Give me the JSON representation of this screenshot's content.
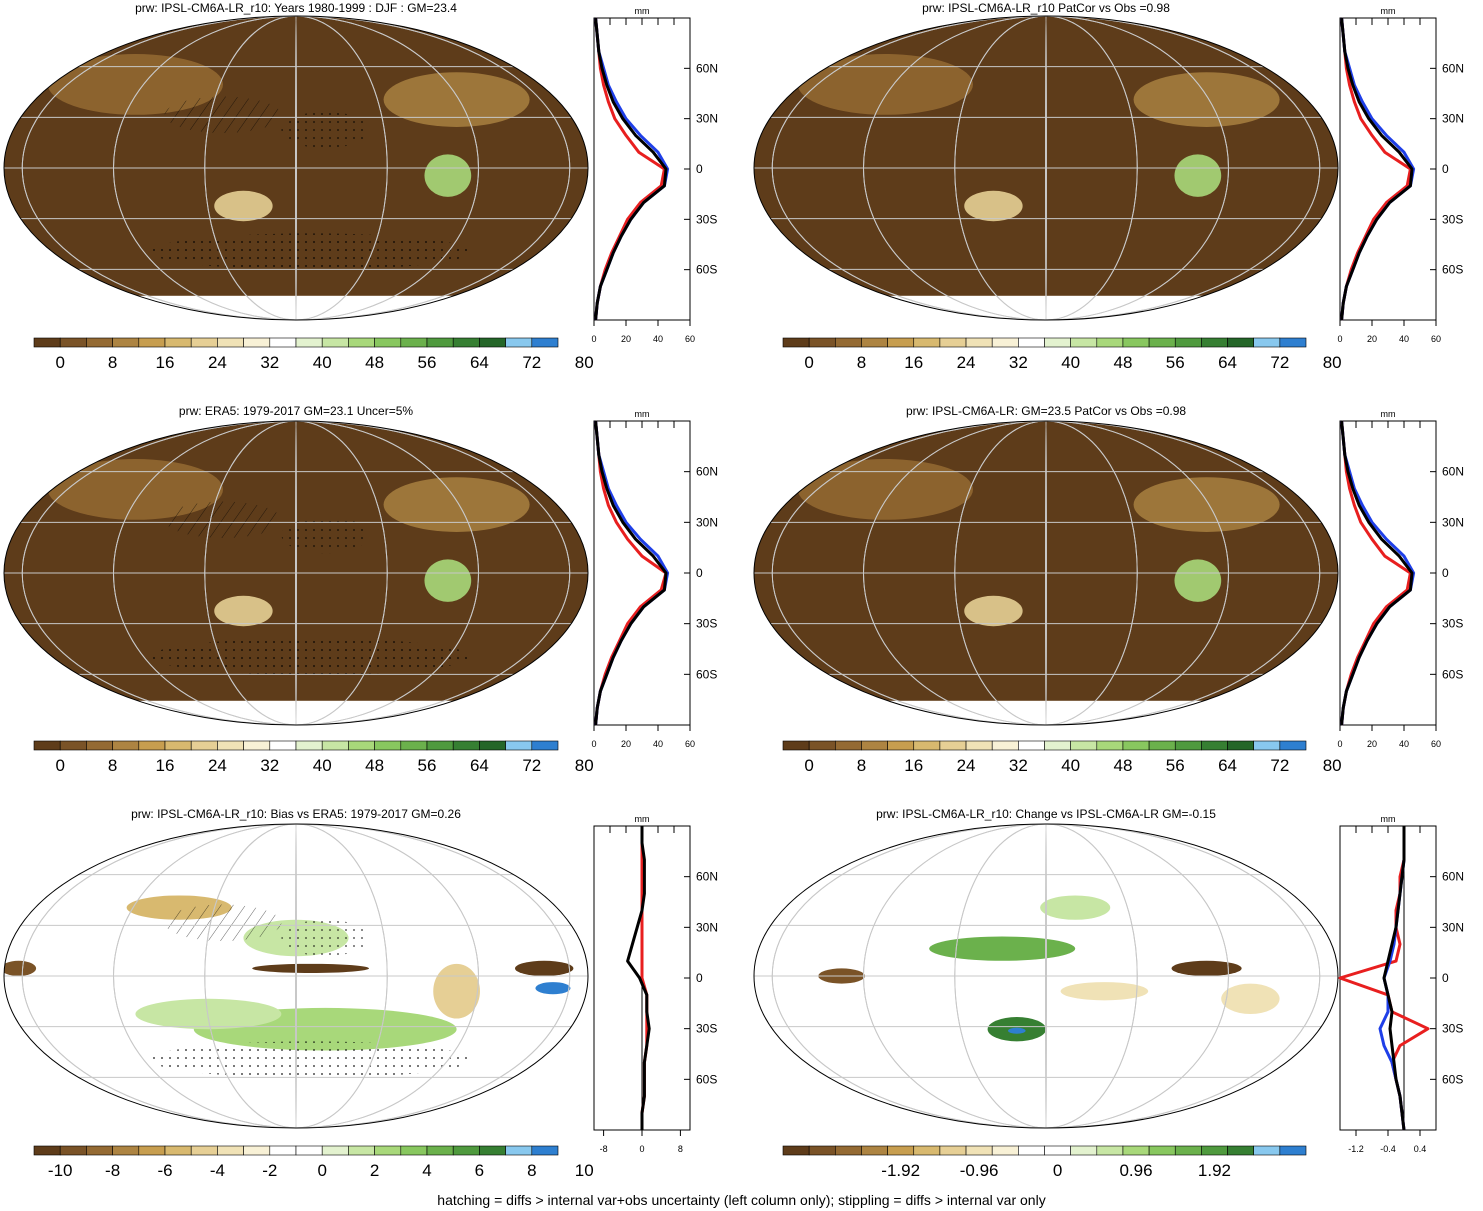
{
  "colors": {
    "abs_scale": [
      "#5e3c1a",
      "#7a5327",
      "#946a33",
      "#ad8442",
      "#c79e4f",
      "#d8b96f",
      "#e6cf95",
      "#f0e2b6",
      "#f8f1d6",
      "#ffffff",
      "#e3f2cf",
      "#c7e6a4",
      "#a8d87a",
      "#88c75f",
      "#6bb14c",
      "#4f9a3e",
      "#367f32",
      "#246628",
      "#88c8ee",
      "#2e7fd0"
    ],
    "diff_scale": [
      "#5e3c1a",
      "#7a5327",
      "#946a33",
      "#ad8442",
      "#c79e4f",
      "#d8b96f",
      "#e6cf95",
      "#f0e2b6",
      "#f8f1d6",
      "#ffffff",
      "#ffffff",
      "#e3f2cf",
      "#c7e6a4",
      "#a8d87a",
      "#88c75f",
      "#6bb14c",
      "#4f9a3e",
      "#367f32",
      "#88c8ee",
      "#2e7fd0"
    ],
    "model_line": "#000000",
    "obs_line": "#e81f1f",
    "ref_line": "#1f3fe8"
  },
  "panels": [
    {
      "title": "prw: IPSL-CM6A-LR_r10: Years 1980-1999 : DJF : GM=23.4"
    },
    {
      "title": "prw: IPSL-CM6A-LR_r10 PatCor vs Obs =0.98"
    },
    {
      "title": "prw: ERA5: 1979-2017 GM=23.1 Uncer=5%"
    },
    {
      "title": "prw: IPSL-CM6A-LR: GM=23.5 PatCor vs Obs =0.98"
    },
    {
      "title": "prw: IPSL-CM6A-LR_r10: Bias vs ERA5: 1979-2017 GM=0.26"
    },
    {
      "title": "prw: IPSL-CM6A-LR_r10: Change vs IPSL-CM6A-LR GM=-0.15"
    }
  ],
  "colorbars": {
    "abs_labels": [
      "0",
      "8",
      "16",
      "24",
      "32",
      "40",
      "48",
      "56",
      "64",
      "72",
      "80"
    ],
    "bias_labels": [
      "-10",
      "-8",
      "-6",
      "-4",
      "-2",
      "0",
      "2",
      "4",
      "6",
      "8",
      "10"
    ],
    "change_labels": [
      "-1.92",
      "-0.96",
      "0",
      "0.96",
      "1.92"
    ]
  },
  "zonal": {
    "unit": "mm",
    "lat_labels": [
      "60N",
      "30N",
      "0",
      "30S",
      "60S"
    ],
    "abs_xticks": [
      "0",
      "20",
      "40",
      "60"
    ],
    "bias_xticks": [
      "-8",
      "0",
      "8"
    ],
    "change_xticks": [
      "-1.2",
      "-0.4",
      "0.4"
    ]
  },
  "chart_data": [
    {
      "type": "line",
      "title": "prw: IPSL-CM6A-LR_r10: Years 1980-1999 : DJF : GM=23.4",
      "xlabel": "mm",
      "ylabel": "",
      "xlim": [
        0,
        60
      ],
      "ylim": [
        -90,
        90
      ],
      "y": [
        -90,
        -80,
        -70,
        -60,
        -50,
        -40,
        -30,
        -20,
        -10,
        0,
        10,
        20,
        30,
        40,
        50,
        60,
        70,
        80,
        90
      ],
      "series": [
        {
          "values": [
            1,
            2,
            4,
            8,
            12,
            17,
            23,
            31,
            44,
            45,
            37,
            26,
            18,
            12,
            8,
            5,
            3,
            2,
            1
          ]
        },
        {
          "values": [
            1,
            2,
            4,
            7,
            11,
            16,
            21,
            29,
            42,
            44,
            28,
            20,
            13,
            9,
            6,
            4,
            3,
            2,
            1
          ]
        },
        {
          "values": [
            1,
            2,
            4,
            8,
            12,
            17,
            23,
            31,
            44,
            46,
            40,
            29,
            20,
            14,
            9,
            6,
            3,
            2,
            1
          ]
        }
      ]
    },
    {
      "type": "line",
      "title": "prw: IPSL-CM6A-LR_r10 PatCor vs Obs =0.98",
      "xlabel": "mm",
      "ylabel": "",
      "xlim": [
        0,
        60
      ],
      "ylim": [
        -90,
        90
      ],
      "y": [
        -90,
        -80,
        -70,
        -60,
        -50,
        -40,
        -30,
        -20,
        -10,
        0,
        10,
        20,
        30,
        40,
        50,
        60,
        70,
        80,
        90
      ],
      "series": [
        {
          "values": [
            1,
            2,
            4,
            8,
            12,
            17,
            23,
            31,
            44,
            45,
            37,
            26,
            18,
            12,
            8,
            5,
            3,
            2,
            1
          ]
        },
        {
          "values": [
            1,
            2,
            4,
            7,
            11,
            16,
            21,
            29,
            42,
            44,
            28,
            20,
            13,
            9,
            6,
            4,
            3,
            2,
            1
          ]
        },
        {
          "values": [
            1,
            2,
            4,
            8,
            12,
            17,
            23,
            31,
            44,
            46,
            40,
            29,
            20,
            14,
            9,
            6,
            3,
            2,
            1
          ]
        }
      ]
    },
    {
      "type": "line",
      "title": "prw: ERA5: 1979-2017 GM=23.1 Uncer=5%",
      "xlabel": "mm",
      "ylabel": "",
      "xlim": [
        0,
        60
      ],
      "ylim": [
        -90,
        90
      ],
      "y": [
        -90,
        -80,
        -70,
        -60,
        -50,
        -40,
        -30,
        -20,
        -10,
        0,
        10,
        20,
        30,
        40,
        50,
        60,
        70,
        80,
        90
      ],
      "series": [
        {
          "values": [
            1,
            2,
            4,
            8,
            12,
            17,
            23,
            31,
            44,
            45,
            37,
            26,
            18,
            12,
            8,
            5,
            3,
            2,
            1
          ]
        },
        {
          "values": [
            1,
            2,
            4,
            7,
            11,
            16,
            21,
            29,
            42,
            45,
            30,
            21,
            14,
            9,
            6,
            4,
            3,
            2,
            1
          ]
        },
        {
          "values": [
            1,
            2,
            4,
            8,
            12,
            17,
            23,
            31,
            44,
            46,
            40,
            29,
            20,
            14,
            9,
            6,
            3,
            2,
            1
          ]
        }
      ]
    },
    {
      "type": "line",
      "title": "prw: IPSL-CM6A-LR: GM=23.5 PatCor vs Obs =0.98",
      "xlabel": "mm",
      "ylabel": "",
      "xlim": [
        0,
        60
      ],
      "ylim": [
        -90,
        90
      ],
      "y": [
        -90,
        -80,
        -70,
        -60,
        -50,
        -40,
        -30,
        -20,
        -10,
        0,
        10,
        20,
        30,
        40,
        50,
        60,
        70,
        80,
        90
      ],
      "series": [
        {
          "values": [
            1,
            2,
            4,
            8,
            12,
            17,
            23,
            31,
            44,
            45,
            37,
            26,
            18,
            12,
            8,
            5,
            3,
            2,
            1
          ]
        },
        {
          "values": [
            1,
            2,
            4,
            7,
            11,
            16,
            21,
            29,
            42,
            44,
            28,
            20,
            13,
            9,
            6,
            4,
            3,
            2,
            1
          ]
        },
        {
          "values": [
            1,
            2,
            4,
            8,
            12,
            17,
            23,
            31,
            44,
            46,
            40,
            29,
            20,
            14,
            9,
            6,
            3,
            2,
            1
          ]
        }
      ]
    },
    {
      "type": "line",
      "title": "prw: IPSL-CM6A-LR_r10: Bias vs ERA5: 1979-2017 GM=0.26",
      "xlabel": "mm",
      "ylabel": "",
      "xlim": [
        -10,
        10
      ],
      "ylim": [
        -90,
        90
      ],
      "y": [
        -90,
        -80,
        -70,
        -60,
        -50,
        -40,
        -30,
        -20,
        -10,
        0,
        10,
        20,
        30,
        40,
        50,
        60,
        70,
        80,
        90
      ],
      "series": [
        {
          "values": [
            0,
            0,
            0.5,
            0.5,
            0.5,
            1,
            1.5,
            1,
            1,
            -0.5,
            -3,
            -2,
            -1,
            0,
            0.5,
            0.5,
            0.5,
            0,
            0
          ]
        },
        {
          "values": [
            0,
            0,
            0.5,
            0.5,
            0.5,
            1,
            1,
            1,
            1,
            0,
            0,
            0,
            0,
            0,
            0,
            0,
            0,
            0,
            0
          ]
        }
      ]
    },
    {
      "type": "line",
      "title": "prw: IPSL-CM6A-LR_r10: Change vs IPSL-CM6A-LR GM=-0.15",
      "xlabel": "mm",
      "ylabel": "",
      "xlim": [
        -1.6,
        0.8
      ],
      "ylim": [
        -90,
        90
      ],
      "y": [
        -90,
        -80,
        -70,
        -60,
        -50,
        -40,
        -30,
        -20,
        -10,
        0,
        10,
        20,
        30,
        40,
        50,
        60,
        70,
        80,
        90
      ],
      "series": [
        {
          "values": [
            0,
            -0.05,
            -0.1,
            -0.2,
            -0.25,
            -0.3,
            -0.35,
            -0.3,
            -0.4,
            -0.5,
            -0.4,
            -0.3,
            -0.2,
            -0.15,
            -0.1,
            -0.05,
            0,
            0,
            0
          ]
        },
        {
          "values": [
            0,
            -0.05,
            -0.1,
            -0.2,
            -0.3,
            -0.1,
            0.6,
            -0.3,
            -0.4,
            -1.6,
            -0.2,
            -0.1,
            -0.2,
            -0.2,
            -0.1,
            -0.1,
            0,
            0,
            0
          ]
        },
        {
          "values": [
            0,
            -0.05,
            -0.1,
            -0.2,
            -0.3,
            -0.5,
            -0.6,
            -0.4,
            -0.4,
            -0.5,
            -0.35,
            -0.25,
            -0.2,
            -0.15,
            -0.1,
            -0.05,
            0,
            0,
            0
          ]
        }
      ]
    }
  ],
  "footnote": "hatching = diffs > internal var+obs uncertainty (left column only); stippling = diffs > internal var only"
}
